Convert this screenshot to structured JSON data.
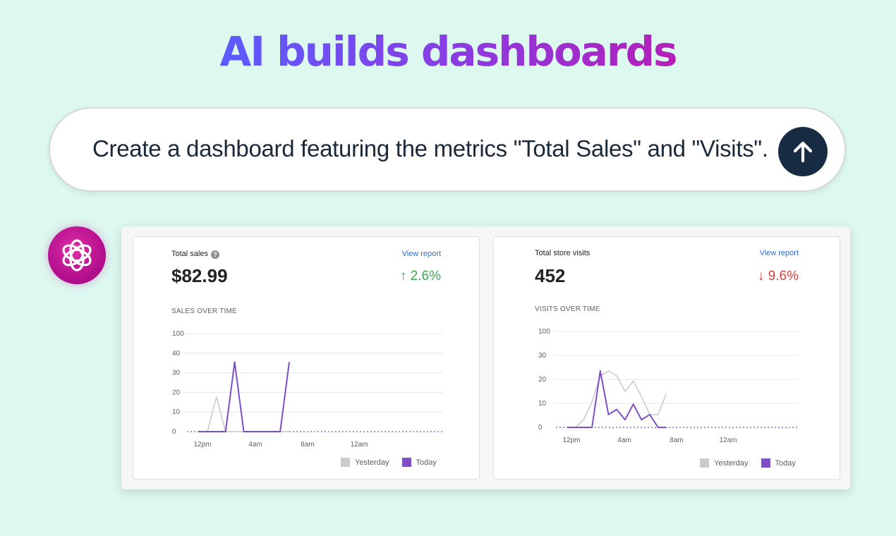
{
  "headline": "AI builds dashboards",
  "prompt": {
    "text": "Create a dashboard featuring the metrics \"Total Sales\" and \"Visits\".",
    "send_icon": "arrow-up-icon"
  },
  "assistant": {
    "avatar_icon": "openai-logo-icon"
  },
  "colors": {
    "today": "#7e4fc6",
    "yesterday": "#c9cccf",
    "up": "#3aa74f",
    "down": "#d9403f",
    "link": "#2c6ecb"
  },
  "sales_card": {
    "title": "Total sales",
    "help_icon": "question-icon",
    "view_report": "View report",
    "value": "$82.99",
    "change": "↑ 2.6%",
    "section": "SALES OVER TIME",
    "legend": {
      "yesterday": "Yesterday",
      "today": "Today"
    }
  },
  "visits_card": {
    "title": "Total store visits",
    "view_report": "View report",
    "value": "452",
    "change": "↓ 9.6%",
    "section": "VISITS OVER TIME",
    "legend": {
      "yesterday": "Yesterday",
      "today": "Today"
    }
  },
  "chart_data": [
    {
      "type": "line",
      "y_ticks": [
        "100",
        "40",
        "30",
        "20",
        "10",
        "0"
      ],
      "x_ticks": [
        "12pm",
        "4am",
        "8am",
        "12am"
      ],
      "x": [
        0,
        1,
        2,
        3,
        4,
        5,
        6,
        7,
        8,
        9,
        10,
        11,
        12,
        13,
        14,
        15,
        16,
        17,
        18,
        19,
        20,
        21,
        22,
        23
      ],
      "series": [
        {
          "name": "Yesterday",
          "values": [
            0,
            0,
            20,
            0,
            0,
            0,
            0,
            0,
            0,
            0,
            0,
            null,
            null,
            null,
            null,
            null,
            null,
            null,
            null,
            null,
            null,
            null,
            null,
            null
          ]
        },
        {
          "name": "Today",
          "values": [
            0,
            0,
            0,
            0,
            40,
            0,
            0,
            0,
            0,
            0,
            40,
            null,
            null,
            null,
            null,
            null,
            null,
            null,
            null,
            null,
            null,
            null,
            null,
            null
          ]
        }
      ],
      "grid": true,
      "legend_position": "bottom-right"
    },
    {
      "type": "line",
      "y_ticks": [
        "100",
        "30",
        "20",
        "10",
        "0"
      ],
      "x_ticks": [
        "12pm",
        "4am",
        "8am",
        "12am"
      ],
      "x": [
        0,
        1,
        2,
        3,
        4,
        5,
        6,
        7,
        8,
        9,
        10,
        11,
        12,
        13,
        14,
        15,
        16,
        17,
        18,
        19,
        20,
        21,
        22,
        23
      ],
      "series": [
        {
          "name": "Yesterday",
          "values": [
            0,
            0,
            3,
            10,
            20,
            22,
            20,
            14,
            18,
            12,
            5,
            5,
            13,
            null,
            null,
            null,
            null,
            null,
            null,
            null,
            null,
            null,
            null,
            null
          ]
        },
        {
          "name": "Today",
          "values": [
            0,
            0,
            0,
            0,
            22,
            5,
            7,
            3,
            9,
            3,
            5,
            0,
            0,
            null,
            null,
            null,
            null,
            null,
            null,
            null,
            null,
            null,
            null,
            null
          ]
        }
      ],
      "grid": true,
      "legend_position": "bottom-right"
    }
  ]
}
